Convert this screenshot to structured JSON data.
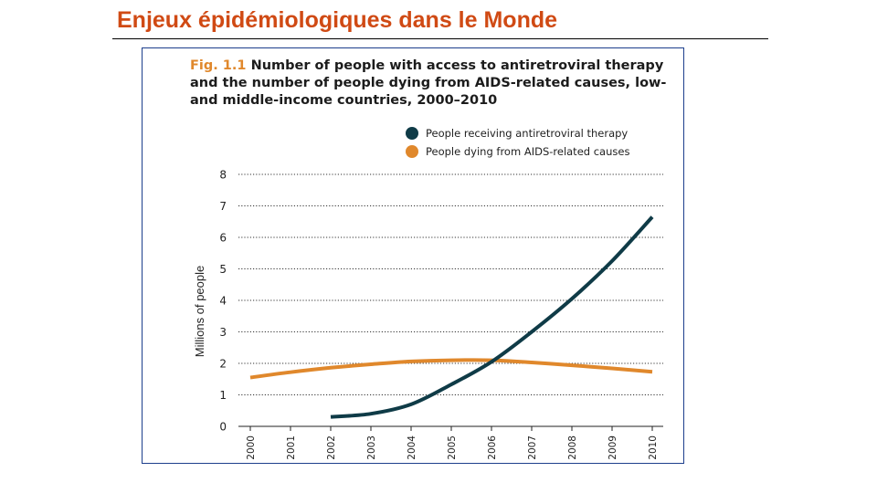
{
  "slide": {
    "title": "Enjeux épidémiologiques dans le Monde"
  },
  "colors": {
    "slide_title": "#d04a14",
    "art": "#0f3b47",
    "deaths": "#e0882c",
    "frame_border": "#1c3e8c",
    "grid": "#333333"
  },
  "figure": {
    "label": "Fig. 1.1",
    "title": "Number of people with access to antiretroviral therapy and the number of people dying from AIDS-related causes, low- and middle-income countries, 2000–2010"
  },
  "chart_data": {
    "type": "line",
    "x": [
      "2000",
      "2001",
      "2002",
      "2003",
      "2004",
      "2005",
      "2006",
      "2007",
      "2008",
      "2009",
      "2010"
    ],
    "series": [
      {
        "name": "People receiving antiretroviral therapy",
        "values": [
          null,
          null,
          0.3,
          0.4,
          0.7,
          1.33,
          2.05,
          3.0,
          4.05,
          5.25,
          6.65
        ]
      },
      {
        "name": "People dying from AIDS-related causes",
        "values": [
          1.55,
          1.72,
          1.86,
          1.97,
          2.06,
          2.1,
          2.1,
          2.03,
          1.94,
          1.84,
          1.73
        ]
      }
    ],
    "ylabel": "Millions of people",
    "xlabel": "",
    "y_ticks": [
      "0",
      "1",
      "2",
      "3",
      "4",
      "5",
      "6",
      "7",
      "8"
    ],
    "ylim": [
      0,
      8
    ],
    "grid": "horizontal-dotted",
    "legend_position": "top-right"
  }
}
